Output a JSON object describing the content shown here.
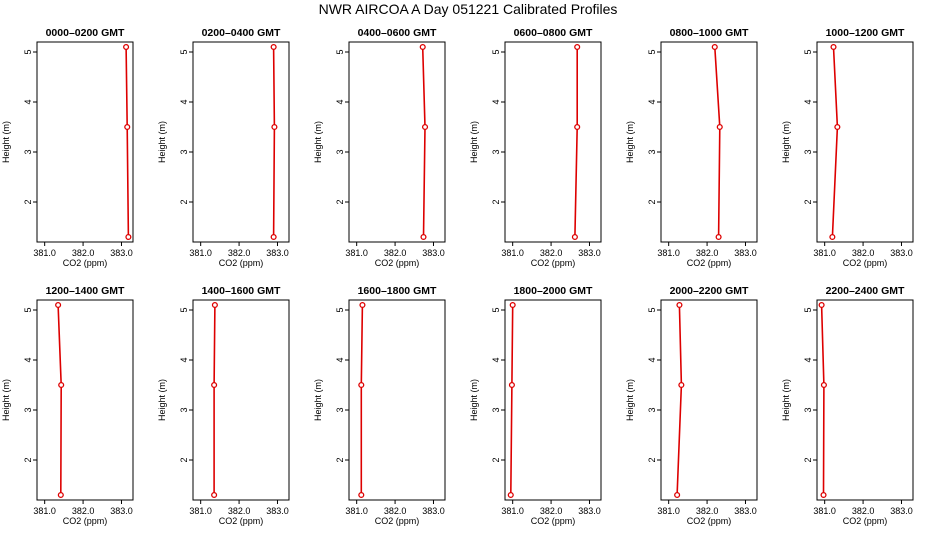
{
  "figure": {
    "title": "NWR AIRCOA A  Day 051221  Calibrated Profiles",
    "series_color": "#dd0000"
  },
  "chart_data": [
    {
      "type": "line",
      "title": "0000–0200 GMT",
      "xlabel": "CO2 (ppm)",
      "ylabel": "Height (m)",
      "xlim": [
        380.8,
        383.3
      ],
      "ylim": [
        1.2,
        5.2
      ],
      "xticks": [
        "381.0",
        "382.0",
        "383.0"
      ],
      "yticks": [
        "2",
        "3",
        "4",
        "5"
      ],
      "grid": false,
      "points": [
        {
          "x": 383.12,
          "y": 5.1
        },
        {
          "x": 383.15,
          "y": 3.5
        },
        {
          "x": 383.18,
          "y": 1.3
        }
      ]
    },
    {
      "type": "line",
      "title": "0200–0400 GMT",
      "xlabel": "CO2 (ppm)",
      "ylabel": "Height (m)",
      "xlim": [
        380.8,
        383.3
      ],
      "ylim": [
        1.2,
        5.2
      ],
      "xticks": [
        "381.0",
        "382.0",
        "383.0"
      ],
      "yticks": [
        "2",
        "3",
        "4",
        "5"
      ],
      "grid": false,
      "points": [
        {
          "x": 382.9,
          "y": 5.1
        },
        {
          "x": 382.92,
          "y": 3.5
        },
        {
          "x": 382.9,
          "y": 1.3
        }
      ]
    },
    {
      "type": "line",
      "title": "0400–0600 GMT",
      "xlabel": "CO2 (ppm)",
      "ylabel": "Height (m)",
      "xlim": [
        380.8,
        383.3
      ],
      "ylim": [
        1.2,
        5.2
      ],
      "xticks": [
        "381.0",
        "382.0",
        "383.0"
      ],
      "yticks": [
        "2",
        "3",
        "4",
        "5"
      ],
      "grid": false,
      "points": [
        {
          "x": 382.72,
          "y": 5.1
        },
        {
          "x": 382.78,
          "y": 3.5
        },
        {
          "x": 382.74,
          "y": 1.3
        }
      ]
    },
    {
      "type": "line",
      "title": "0600–0800 GMT",
      "xlabel": "CO2 (ppm)",
      "ylabel": "Height (m)",
      "xlim": [
        380.8,
        383.3
      ],
      "ylim": [
        1.2,
        5.2
      ],
      "xticks": [
        "381.0",
        "382.0",
        "383.0"
      ],
      "yticks": [
        "2",
        "3",
        "4",
        "5"
      ],
      "grid": false,
      "points": [
        {
          "x": 382.68,
          "y": 5.1
        },
        {
          "x": 382.68,
          "y": 3.5
        },
        {
          "x": 382.62,
          "y": 1.3
        }
      ]
    },
    {
      "type": "line",
      "title": "0800–1000 GMT",
      "xlabel": "CO2 (ppm)",
      "ylabel": "Height (m)",
      "xlim": [
        380.8,
        383.3
      ],
      "ylim": [
        1.2,
        5.2
      ],
      "xticks": [
        "381.0",
        "382.0",
        "383.0"
      ],
      "yticks": [
        "2",
        "3",
        "4",
        "5"
      ],
      "grid": false,
      "points": [
        {
          "x": 382.2,
          "y": 5.1
        },
        {
          "x": 382.33,
          "y": 3.5
        },
        {
          "x": 382.3,
          "y": 1.3
        }
      ]
    },
    {
      "type": "line",
      "title": "1000–1200 GMT",
      "xlabel": "CO2 (ppm)",
      "ylabel": "Height (m)",
      "xlim": [
        380.8,
        383.3
      ],
      "ylim": [
        1.2,
        5.2
      ],
      "xticks": [
        "381.0",
        "382.0",
        "383.0"
      ],
      "yticks": [
        "2",
        "3",
        "4",
        "5"
      ],
      "grid": false,
      "points": [
        {
          "x": 381.23,
          "y": 5.1
        },
        {
          "x": 381.33,
          "y": 3.5
        },
        {
          "x": 381.2,
          "y": 1.3
        }
      ]
    },
    {
      "type": "line",
      "title": "1200–1400 GMT",
      "xlabel": "CO2 (ppm)",
      "ylabel": "Height (m)",
      "xlim": [
        380.8,
        383.3
      ],
      "ylim": [
        1.2,
        5.2
      ],
      "xticks": [
        "381.0",
        "382.0",
        "383.0"
      ],
      "yticks": [
        "2",
        "3",
        "4",
        "5"
      ],
      "grid": false,
      "points": [
        {
          "x": 381.35,
          "y": 5.1
        },
        {
          "x": 381.43,
          "y": 3.5
        },
        {
          "x": 381.42,
          "y": 1.3
        }
      ]
    },
    {
      "type": "line",
      "title": "1400–1600 GMT",
      "xlabel": "CO2 (ppm)",
      "ylabel": "Height (m)",
      "xlim": [
        380.8,
        383.3
      ],
      "ylim": [
        1.2,
        5.2
      ],
      "xticks": [
        "381.0",
        "382.0",
        "383.0"
      ],
      "yticks": [
        "2",
        "3",
        "4",
        "5"
      ],
      "grid": false,
      "points": [
        {
          "x": 381.37,
          "y": 5.1
        },
        {
          "x": 381.35,
          "y": 3.5
        },
        {
          "x": 381.35,
          "y": 1.3
        }
      ]
    },
    {
      "type": "line",
      "title": "1600–1800 GMT",
      "xlabel": "CO2 (ppm)",
      "ylabel": "Height (m)",
      "xlim": [
        380.8,
        383.3
      ],
      "ylim": [
        1.2,
        5.2
      ],
      "xticks": [
        "381.0",
        "382.0",
        "383.0"
      ],
      "yticks": [
        "2",
        "3",
        "4",
        "5"
      ],
      "grid": false,
      "points": [
        {
          "x": 381.15,
          "y": 5.1
        },
        {
          "x": 381.12,
          "y": 3.5
        },
        {
          "x": 381.12,
          "y": 1.3
        }
      ]
    },
    {
      "type": "line",
      "title": "1800–2000 GMT",
      "xlabel": "CO2 (ppm)",
      "ylabel": "Height (m)",
      "xlim": [
        380.8,
        383.3
      ],
      "ylim": [
        1.2,
        5.2
      ],
      "xticks": [
        "381.0",
        "382.0",
        "383.0"
      ],
      "yticks": [
        "2",
        "3",
        "4",
        "5"
      ],
      "grid": false,
      "points": [
        {
          "x": 381.0,
          "y": 5.1
        },
        {
          "x": 380.98,
          "y": 3.5
        },
        {
          "x": 380.95,
          "y": 1.3
        }
      ]
    },
    {
      "type": "line",
      "title": "2000–2200 GMT",
      "xlabel": "CO2 (ppm)",
      "ylabel": "Height (m)",
      "xlim": [
        380.8,
        383.3
      ],
      "ylim": [
        1.2,
        5.2
      ],
      "xticks": [
        "381.0",
        "382.0",
        "383.0"
      ],
      "yticks": [
        "2",
        "3",
        "4",
        "5"
      ],
      "grid": false,
      "points": [
        {
          "x": 381.28,
          "y": 5.1
        },
        {
          "x": 381.33,
          "y": 3.5
        },
        {
          "x": 381.22,
          "y": 1.3
        }
      ]
    },
    {
      "type": "line",
      "title": "2200–2400 GMT",
      "xlabel": "CO2 (ppm)",
      "ylabel": "Height (m)",
      "xlim": [
        380.8,
        383.3
      ],
      "ylim": [
        1.2,
        5.2
      ],
      "xticks": [
        "381.0",
        "382.0",
        "383.0"
      ],
      "yticks": [
        "2",
        "3",
        "4",
        "5"
      ],
      "grid": false,
      "points": [
        {
          "x": 380.92,
          "y": 5.1
        },
        {
          "x": 380.98,
          "y": 3.5
        },
        {
          "x": 380.97,
          "y": 1.3
        }
      ]
    }
  ]
}
